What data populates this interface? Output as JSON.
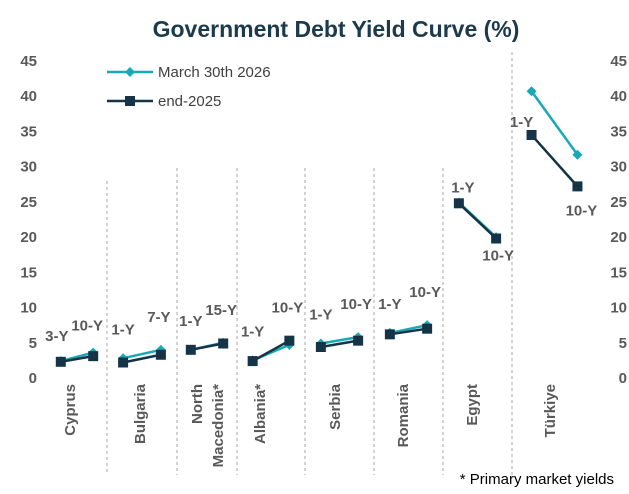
{
  "chart_data": {
    "type": "line",
    "title": "Government Debt Yield Curve (%)",
    "ylim": [
      0,
      45
    ],
    "y_ticks": [
      "0",
      "5",
      "10",
      "15",
      "20",
      "25",
      "30",
      "35",
      "40",
      "45"
    ],
    "legend_position": "top-left",
    "series_colors": [
      "#17a9b8",
      "#163447"
    ],
    "series": [
      {
        "name": "March 30th 2026"
      },
      {
        "name": "end-2025"
      }
    ],
    "groups": [
      {
        "category": "Cyprus",
        "tenors": [
          "3-Y",
          "10-Y"
        ],
        "march_2026": [
          2.4,
          3.6
        ],
        "end_2025": [
          2.3,
          3.1
        ]
      },
      {
        "category": "Bulgaria",
        "tenors": [
          "1-Y",
          "7-Y"
        ],
        "march_2026": [
          2.8,
          4.0
        ],
        "end_2025": [
          2.2,
          3.3
        ]
      },
      {
        "category": "North Macedonia*",
        "tenors": [
          "1-Y",
          "15-Y"
        ],
        "march_2026": [
          4.0,
          5.0
        ],
        "end_2025": [
          4.0,
          4.9
        ]
      },
      {
        "category": "Albania*",
        "tenors": [
          "1-Y",
          "10-Y"
        ],
        "march_2026": [
          2.5,
          4.7
        ],
        "end_2025": [
          2.4,
          5.3
        ]
      },
      {
        "category": "Serbia",
        "tenors": [
          "1-Y",
          "10-Y"
        ],
        "march_2026": [
          4.9,
          5.8
        ],
        "end_2025": [
          4.4,
          5.3
        ]
      },
      {
        "category": "Romania",
        "tenors": [
          "1-Y",
          "10-Y"
        ],
        "march_2026": [
          6.4,
          7.5
        ],
        "end_2025": [
          6.2,
          7.0
        ]
      },
      {
        "category": "Egypt",
        "tenors": [
          "1-Y",
          "10-Y"
        ],
        "march_2026": [
          24.9,
          20.0
        ],
        "end_2025": [
          24.8,
          19.8
        ]
      },
      {
        "category": "Türkiye",
        "tenors": [
          "1-Y",
          "10-Y"
        ],
        "march_2026": [
          40.7,
          31.7
        ],
        "end_2025": [
          34.5,
          27.2
        ]
      }
    ],
    "footnote": "* Primary market yields"
  }
}
